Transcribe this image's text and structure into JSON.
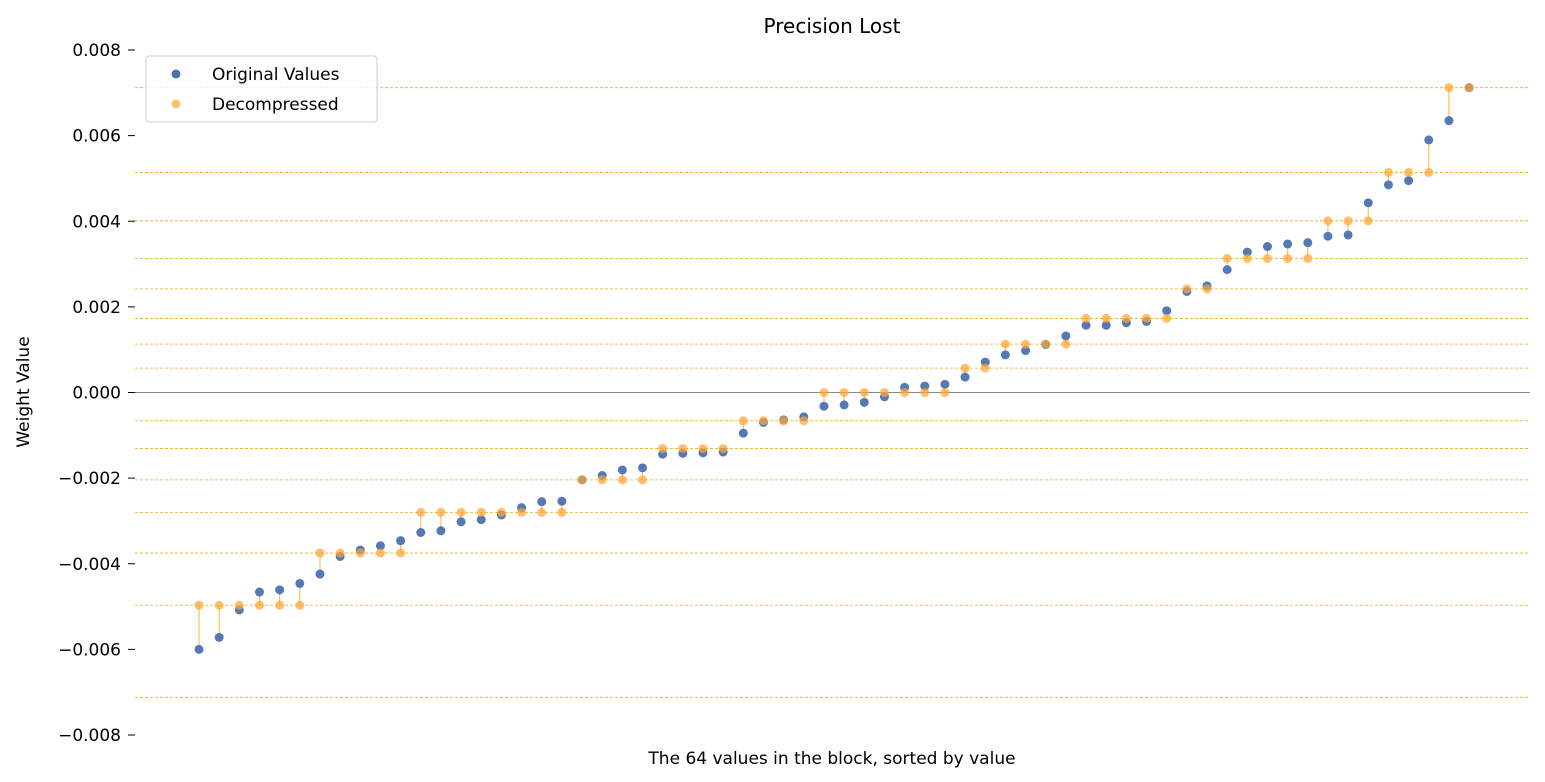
{
  "chart_data": {
    "type": "scatter",
    "title": "Precision Lost",
    "xlabel": "The 64 values in the block, sorted by value",
    "ylabel": "Weight Value",
    "ylim": [
      -0.008,
      0.008
    ],
    "yticks": [
      -0.008,
      -0.006,
      -0.004,
      -0.002,
      0.0,
      0.002,
      0.004,
      0.006,
      0.008
    ],
    "ytick_labels": [
      "−0.008",
      "−0.006",
      "−0.004",
      "−0.002",
      "0.000",
      "0.002",
      "0.004",
      "0.006",
      "0.008"
    ],
    "x_ticks_visible": false,
    "grid": false,
    "legend_position": "top-left",
    "zero_line": true,
    "quantization_levels": [
      -0.00712,
      -0.00497,
      -0.00375,
      -0.0028,
      -0.00204,
      -0.00131,
      -0.00066,
      0.0,
      0.00057,
      0.00113,
      0.00173,
      0.00242,
      0.00313,
      0.00401,
      0.00514,
      0.00712
    ],
    "series": [
      {
        "name": "Original Values",
        "color": "#4c72b0",
        "values": [
          -0.006,
          -0.00572,
          -0.00508,
          -0.00466,
          -0.00461,
          -0.00446,
          -0.00424,
          -0.00383,
          -0.00368,
          -0.00358,
          -0.00346,
          -0.00327,
          -0.00323,
          -0.00302,
          -0.00297,
          -0.00286,
          -0.00269,
          -0.00255,
          -0.00254,
          -0.00204,
          -0.00194,
          -0.00181,
          -0.00176,
          -0.00144,
          -0.00142,
          -0.00141,
          -0.00139,
          -0.00095,
          -0.0007,
          -0.00064,
          -0.00057,
          -0.00032,
          -0.00029,
          -0.00023,
          -0.0001,
          0.00012,
          0.00015,
          0.00019,
          0.00036,
          0.00071,
          0.00088,
          0.00098,
          0.00112,
          0.00132,
          0.00157,
          0.00157,
          0.00163,
          0.00166,
          0.00191,
          0.00236,
          0.00249,
          0.00287,
          0.00328,
          0.00341,
          0.00347,
          0.0035,
          0.00365,
          0.00368,
          0.00443,
          0.00485,
          0.00495,
          0.0059,
          0.00635,
          0.00712
        ]
      },
      {
        "name": "Decompressed",
        "color": "#ffa533",
        "values": [
          -0.00497,
          -0.00497,
          -0.00497,
          -0.00497,
          -0.00497,
          -0.00497,
          -0.00375,
          -0.00375,
          -0.00375,
          -0.00375,
          -0.00375,
          -0.0028,
          -0.0028,
          -0.0028,
          -0.0028,
          -0.0028,
          -0.0028,
          -0.0028,
          -0.0028,
          -0.00204,
          -0.00204,
          -0.00204,
          -0.00204,
          -0.00131,
          -0.00131,
          -0.00131,
          -0.00131,
          -0.00066,
          -0.00066,
          -0.00066,
          -0.00066,
          0.0,
          0.0,
          0.0,
          0.0,
          0.0,
          0.0,
          0.0,
          0.00057,
          0.00057,
          0.00113,
          0.00113,
          0.00113,
          0.00113,
          0.00173,
          0.00173,
          0.00173,
          0.00173,
          0.00173,
          0.00242,
          0.00242,
          0.00313,
          0.00313,
          0.00313,
          0.00313,
          0.00313,
          0.00401,
          0.00401,
          0.00401,
          0.00514,
          0.00514,
          0.00514,
          0.00712,
          0.00712
        ]
      }
    ],
    "colors": {
      "original": "#4c72b0",
      "decompressed": "#ffa533",
      "stem": "#ffa533",
      "level_line": "#f0a81e",
      "zero_line": "#888888"
    }
  }
}
